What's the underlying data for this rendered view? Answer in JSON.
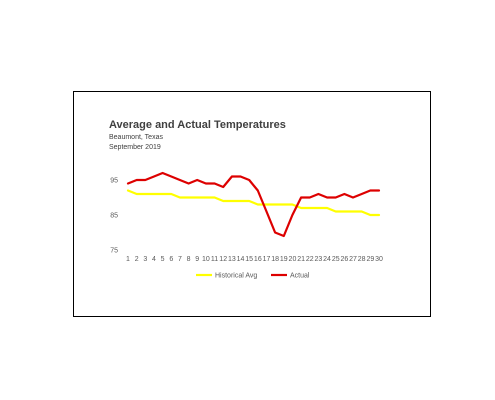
{
  "chart_data": {
    "type": "line",
    "title": "Average and Actual Temperatures",
    "subtitle_lines": [
      "Beaumont, Texas",
      "September 2019"
    ],
    "xlabel": "",
    "ylabel": "",
    "x": [
      1,
      2,
      3,
      4,
      5,
      6,
      7,
      8,
      9,
      10,
      11,
      12,
      13,
      14,
      15,
      16,
      17,
      18,
      19,
      20,
      21,
      22,
      23,
      24,
      25,
      26,
      27,
      28,
      29,
      30
    ],
    "x_tick_labels": [
      "1",
      "2",
      "3",
      "4",
      "5",
      "6",
      "7",
      "8",
      "9",
      "10",
      "11",
      "12",
      "13",
      "14",
      "15",
      "16",
      "17",
      "18",
      "19",
      "20",
      "21",
      "22",
      "23",
      "24",
      "25",
      "26",
      "27",
      "28",
      "29",
      "30"
    ],
    "y_ticks": [
      75,
      85,
      95
    ],
    "y_tick_labels": [
      "75",
      "85",
      "95"
    ],
    "ylim": [
      75,
      95
    ],
    "grid": false,
    "legend_position": "bottom",
    "series": [
      {
        "name": "Historical Avg",
        "color": "#ffff00",
        "values": [
          92,
          91,
          91,
          91,
          91,
          91,
          90,
          90,
          90,
          90,
          90,
          89,
          89,
          89,
          89,
          88,
          88,
          88,
          88,
          88,
          87,
          87,
          87,
          87,
          86,
          86,
          86,
          86,
          85,
          85
        ]
      },
      {
        "name": "Actual",
        "color": "#dd0000",
        "values": [
          94,
          95,
          95,
          96,
          97,
          96,
          95,
          94,
          95,
          94,
          94,
          93,
          96,
          96,
          95,
          92,
          86,
          80,
          79,
          85,
          90,
          90,
          91,
          90,
          90,
          91,
          90,
          91,
          92,
          92
        ]
      }
    ]
  }
}
